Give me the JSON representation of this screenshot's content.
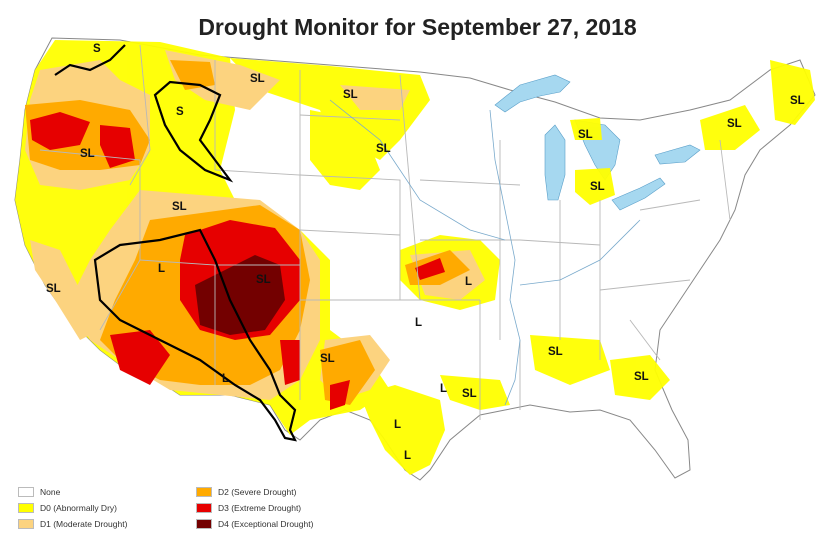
{
  "title": "Drought Monitor for September 27, 2018",
  "colors": {
    "none": "#ffffff",
    "d0": "#ffff00",
    "d1": "#fcd37f",
    "d2": "#ffaa00",
    "d3": "#e60000",
    "d4": "#730000",
    "water": "#a6d8f0",
    "state_border": "#b8b8b8",
    "river": "#7aaacc",
    "impact_line": "#000000"
  },
  "legend": [
    {
      "key": "none",
      "label": "None"
    },
    {
      "key": "d0",
      "label": "D0 (Abnormally Dry)"
    },
    {
      "key": "d1",
      "label": "D1 (Moderate Drought)"
    },
    {
      "key": "d2",
      "label": "D2 (Severe Drought)"
    },
    {
      "key": "d3",
      "label": "D3 (Extreme Drought)"
    },
    {
      "key": "d4",
      "label": "D4 (Exceptional Drought)"
    }
  ],
  "impact_labels": {
    "s_wa": "S",
    "sl_mt": "SL",
    "s_id": "S",
    "sl_or": "SL",
    "sl_nd": "SL",
    "sl_sd": "SL",
    "sl_ut": "SL",
    "sl_ca": "SL",
    "l_nv": "L",
    "sl_co": "SL",
    "l_az": "L",
    "sl_nm": "SL",
    "l_ks": "L",
    "l_ok": "L",
    "l_tx_n": "L",
    "sl_ark": "SL",
    "l_tx_c": "L",
    "l_tx_s": "L",
    "sl_ms": "SL",
    "sl_sc": "SL",
    "sl_mi": "SL",
    "sl_mi2": "SL",
    "sl_ny": "SL",
    "sl_me": "SL"
  }
}
